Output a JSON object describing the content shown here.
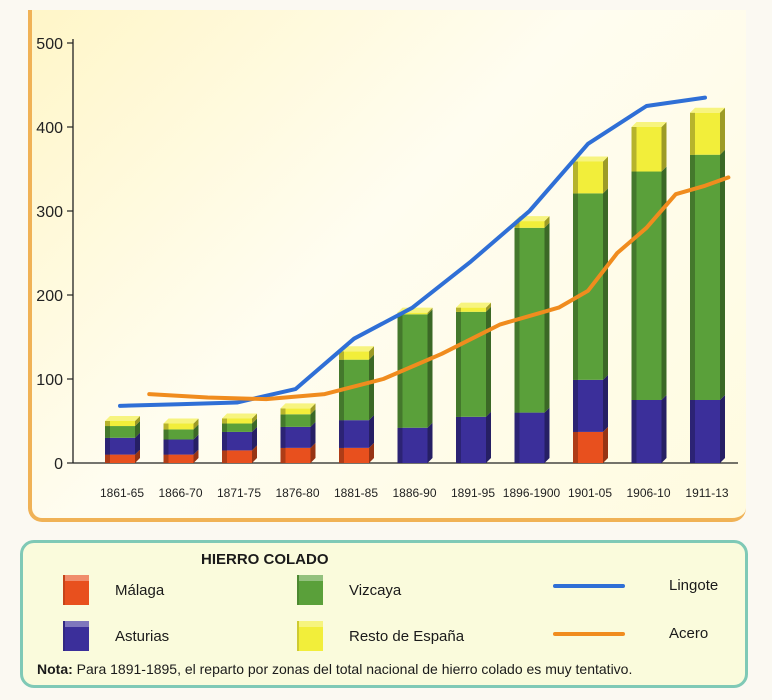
{
  "chart_data": {
    "type": "bar",
    "title": "HIERRO COLADO",
    "categories": [
      "1861-65",
      "1866-70",
      "1871-75",
      "1876-80",
      "1881-85",
      "1886-90",
      "1891-95",
      "1896-1900",
      "1901-05",
      "1906-10",
      "1911-13"
    ],
    "ylim": [
      0,
      500
    ],
    "yticks": [
      0,
      100,
      200,
      300,
      400,
      500
    ],
    "stacked": true,
    "series": [
      {
        "name": "Málaga",
        "color": "#e8501e",
        "values": [
          10,
          10,
          15,
          18,
          18,
          0,
          0,
          0,
          37,
          0,
          0
        ]
      },
      {
        "name": "Asturias",
        "color": "#3b2f9a",
        "values": [
          20,
          18,
          22,
          25,
          33,
          42,
          55,
          60,
          62,
          75,
          75
        ]
      },
      {
        "name": "Vizcaya",
        "color": "#5aa03a",
        "values": [
          14,
          12,
          10,
          15,
          72,
          135,
          125,
          220,
          222,
          272,
          292
        ]
      },
      {
        "name": "Resto de España",
        "color": "#f2ee3a",
        "values": [
          6,
          7,
          6,
          7,
          10,
          2,
          5,
          8,
          38,
          53,
          50
        ]
      }
    ],
    "lines": [
      {
        "name": "Lingote",
        "color": "#2f6fd6",
        "x_index": [
          0.0,
          1.0,
          2.0,
          3.0,
          4.0,
          5.0,
          6.0,
          7.0,
          8.0,
          9.0,
          10.0
        ],
        "values": [
          68,
          70,
          72,
          88,
          148,
          185,
          240,
          300,
          380,
          425,
          435
        ]
      },
      {
        "name": "Acero",
        "color": "#f08c1e",
        "x_index": [
          0.5,
          1.5,
          2.5,
          3.5,
          4.5,
          5.5,
          6.5,
          7.5,
          8.0,
          8.5,
          9.0,
          9.5,
          10.0,
          10.4
        ],
        "values": [
          82,
          78,
          76,
          82,
          100,
          130,
          165,
          185,
          205,
          250,
          280,
          320,
          330,
          340
        ]
      }
    ]
  },
  "legend": {
    "title": "HIERRO COLADO",
    "malaga": "Málaga",
    "asturias": "Asturias",
    "vizcaya": "Vizcaya",
    "resto": "Resto de España",
    "lingote": "Lingote",
    "acero": "Acero",
    "colors": {
      "malaga": "#e8501e",
      "asturias": "#3b2f9a",
      "vizcaya": "#5aa03a",
      "resto": "#f2ee3a",
      "lingote": "#2f6fd6",
      "acero": "#f08c1e"
    }
  },
  "note": {
    "label": "Nota:",
    "text": " Para 1891-1895, el reparto por zonas del total nacional de hierro colado es muy tentativo."
  }
}
